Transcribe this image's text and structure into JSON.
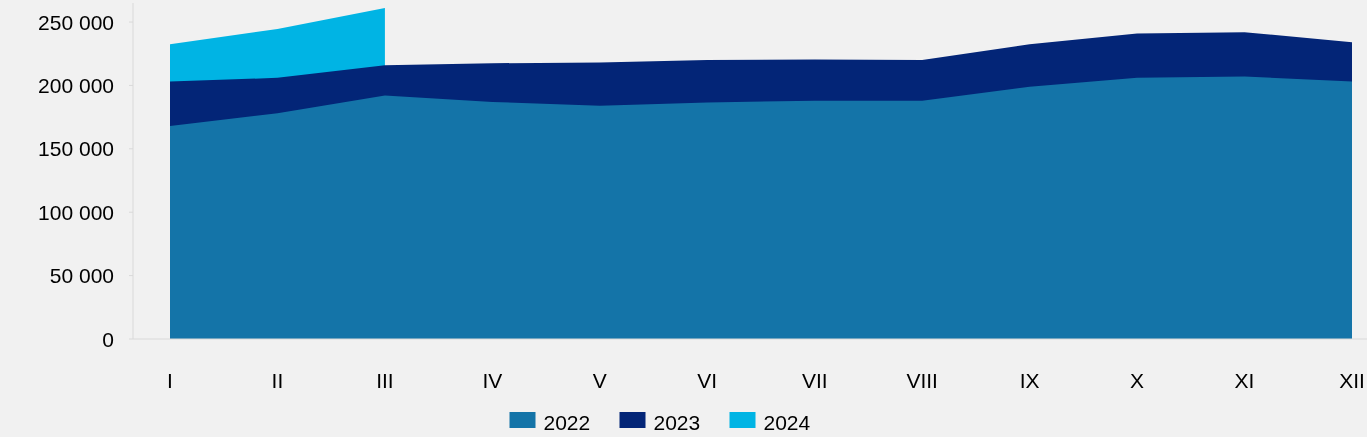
{
  "chart_data": {
    "type": "area",
    "categories": [
      "I",
      "II",
      "III",
      "IV",
      "V",
      "VI",
      "VII",
      "VIII",
      "IX",
      "X",
      "XI",
      "XII"
    ],
    "series": [
      {
        "name": "2022",
        "color": "#1474a8",
        "values": [
          168000,
          178000,
          192000,
          187000,
          184000,
          186500,
          188000,
          188000,
          199000,
          206000,
          207000,
          203000
        ]
      },
      {
        "name": "2023",
        "color": "#032577",
        "values": [
          203000,
          206000,
          216000,
          217500,
          218000,
          220000,
          220500,
          220000,
          232500,
          241000,
          242000,
          234000
        ]
      },
      {
        "name": "2024",
        "color": "#00b4e4",
        "values": [
          232500,
          244500,
          261000,
          null,
          null,
          null,
          null,
          null,
          null,
          null,
          null,
          null
        ]
      }
    ],
    "ylim": [
      0,
      265000
    ],
    "yticks": [
      0,
      {
        "value": 50000,
        "label": "50 000"
      },
      {
        "value": 100000,
        "label": "100 000"
      },
      {
        "value": 150000,
        "label": "150 000"
      },
      {
        "value": 200000,
        "label": "200 000"
      },
      {
        "value": 250000,
        "label": "250 000"
      }
    ],
    "grid": false,
    "legend": "bottom"
  }
}
